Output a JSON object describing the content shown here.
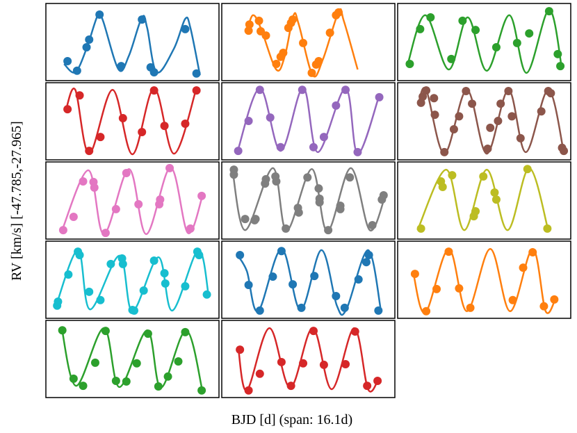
{
  "figure": {
    "xlabel": "BJD [d] (span: 16.1d)",
    "ylabel": "RV [km/s] [-47.785,-27.965]"
  },
  "chart_data": [
    {
      "type": "line",
      "xlim": [
        -2,
        18
      ],
      "ylim": [
        -50,
        -25
      ],
      "series": [
        {
          "style": "line",
          "color": "#1f77b4",
          "x": [
            0.1,
            1.4,
            2.7,
            4.0,
            4.6,
            6.4,
            7.6,
            9.1,
            9.7,
            10.8,
            12.8,
            14.1,
            14.7,
            15.8
          ],
          "values": [
            -44.6,
            -47.3,
            -39.6,
            -28.8,
            -30.6,
            -46.4,
            -41.9,
            -29.5,
            -32.9,
            -47.3,
            -39.6,
            -30.0,
            -32.9,
            -48.2
          ]
        },
        {
          "style": "scatter",
          "color": "#1f77b4",
          "x": [
            0.5,
            1.6,
            2.7,
            3.0,
            4.2,
            6.7,
            9.1,
            10.1,
            10.5,
            14.1,
            15.4
          ],
          "values": [
            -43.7,
            -46.8,
            -39.2,
            -36.7,
            -28.6,
            -45.3,
            -30.2,
            -45.7,
            -47.3,
            -33.3,
            -47.7
          ]
        }
      ]
    },
    {
      "type": "line",
      "xlim": [
        -2,
        18
      ],
      "ylim": [
        -50,
        -25
      ],
      "series": [
        {
          "style": "line",
          "color": "#ff7f0e",
          "x": [
            0.9,
            1.6,
            2.5,
            4.3,
            5.3,
            6.3,
            6.9,
            8.5,
            9.7,
            11.5,
            12.1,
            13.7
          ],
          "values": [
            -34.0,
            -28.8,
            -32.9,
            -46.4,
            -41.9,
            -28.8,
            -31.8,
            -48.2,
            -43.0,
            -27.7,
            -30.6,
            -46.4
          ]
        },
        {
          "style": "scatter",
          "color": "#ff7f0e",
          "x": [
            1.1,
            1.2,
            2.3,
            2.5,
            3.1,
            4.3,
            4.8,
            5.1,
            5.7,
            6.0,
            6.2,
            7.4,
            8.4,
            8.9,
            9.2,
            10.5,
            11.2,
            11.5
          ],
          "values": [
            -33.8,
            -31.8,
            -30.6,
            -34.0,
            -35.4,
            -44.6,
            -42.3,
            -41.0,
            -32.9,
            -31.3,
            -30.2,
            -37.8,
            -47.5,
            -44.8,
            -43.7,
            -34.5,
            -28.8,
            -27.9
          ]
        }
      ]
    },
    {
      "type": "line",
      "xlim": [
        -2,
        18
      ],
      "ylim": [
        -50,
        -25
      ],
      "series": [
        {
          "style": "line",
          "color": "#2ca02c",
          "x": [
            -0.9,
            1.2,
            3.9,
            6.1,
            8.3,
            10.9,
            12.9,
            15.5,
            17.0
          ],
          "values": [
            -45.3,
            -28.8,
            -46.4,
            -29.5,
            -46.8,
            -28.8,
            -47.5,
            -27.0,
            -46.4
          ]
        },
        {
          "style": "scatter",
          "color": "#2ca02c",
          "x": [
            -0.6,
            0.6,
            1.8,
            4.2,
            5.5,
            7.0,
            9.4,
            11.8,
            13.2,
            15.5,
            16.5,
            16.8
          ],
          "values": [
            -44.6,
            -33.3,
            -29.5,
            -43.0,
            -30.6,
            -33.6,
            -39.2,
            -37.8,
            -34.7,
            -27.5,
            -41.4,
            -45.3
          ]
        }
      ]
    },
    {
      "type": "line",
      "xlim": [
        -2,
        18
      ],
      "ylim": [
        -50,
        -25
      ],
      "series": [
        {
          "style": "line",
          "color": "#d62728",
          "x": [
            0.3,
            1.4,
            3.0,
            5.7,
            8.0,
            10.5,
            12.8,
            15.4
          ],
          "values": [
            -34.0,
            -27.3,
            -48.0,
            -27.3,
            -48.2,
            -26.8,
            -48.0,
            -26.8
          ]
        },
        {
          "style": "scatter",
          "color": "#d62728",
          "x": [
            0.5,
            1.9,
            3.0,
            4.3,
            6.9,
            9.1,
            10.5,
            11.7,
            14.1,
            15.4
          ],
          "values": [
            -33.6,
            -29.1,
            -47.1,
            -42.6,
            -36.5,
            -41.0,
            -27.5,
            -39.0,
            -38.3,
            -27.5
          ]
        }
      ]
    },
    {
      "type": "line",
      "xlim": [
        -2,
        18
      ],
      "ylim": [
        -50,
        -25
      ],
      "series": [
        {
          "style": "line",
          "color": "#9467bd",
          "x": [
            -0.2,
            2.4,
            4.8,
            7.4,
            9.1,
            12.3,
            13.7,
            16.2
          ],
          "values": [
            -47.5,
            -26.8,
            -47.1,
            -26.6,
            -47.5,
            -26.8,
            -48.0,
            -29.1
          ]
        },
        {
          "style": "scatter",
          "color": "#9467bd",
          "x": [
            -0.1,
            1.1,
            2.4,
            3.6,
            4.8,
            7.3,
            8.6,
            9.8,
            11.2,
            12.3,
            13.7,
            16.2
          ],
          "values": [
            -47.1,
            -37.4,
            -27.3,
            -36.3,
            -45.9,
            -27.3,
            -45.9,
            -42.6,
            -32.4,
            -27.3,
            -47.5,
            -29.7
          ]
        }
      ]
    },
    {
      "type": "line",
      "xlim": [
        -2,
        18
      ],
      "ylim": [
        -50,
        -25
      ],
      "series": [
        {
          "style": "line",
          "color": "#8c564b",
          "x": [
            0.4,
            1.3,
            3.4,
            6.0,
            8.3,
            10.8,
            12.8,
            15.4,
            17.2
          ],
          "values": [
            -31.8,
            -27.3,
            -48.0,
            -27.3,
            -48.0,
            -27.3,
            -47.5,
            -27.3,
            -47.5
          ]
        },
        {
          "style": "scatter",
          "color": "#8c564b",
          "x": [
            0.7,
            0.9,
            1.3,
            2.2,
            2.3,
            3.4,
            4.5,
            5.1,
            5.9,
            6.6,
            8.4,
            8.7,
            9.6,
            9.9,
            10.8,
            11.2,
            12.2,
            14.6,
            15.4,
            15.7,
            17.0,
            17.2
          ],
          "values": [
            -31.5,
            -29.5,
            -27.5,
            -30.0,
            -35.4,
            -47.5,
            -40.1,
            -35.9,
            -27.7,
            -31.8,
            -46.4,
            -39.6,
            -37.4,
            -31.8,
            -27.7,
            -35.9,
            -43.0,
            -34.3,
            -27.7,
            -28.4,
            -46.1,
            -47.1
          ]
        }
      ]
    },
    {
      "type": "line",
      "xlim": [
        -2,
        18
      ],
      "ylim": [
        -50,
        -25
      ],
      "series": [
        {
          "style": "line",
          "color": "#e377c2",
          "x": [
            -0.2,
            2.9,
            4.7,
            7.6,
            9.6,
            12.4,
            14.4,
            16.1
          ],
          "values": [
            -47.7,
            -27.7,
            -48.4,
            -27.3,
            -48.4,
            -26.8,
            -48.0,
            -36.0
          ]
        },
        {
          "style": "scatter",
          "color": "#e377c2",
          "x": [
            0.0,
            1.2,
            2.3,
            3.5,
            3.6,
            4.9,
            6.1,
            7.3,
            8.7,
            11.1,
            11.2,
            12.3,
            14.7,
            16.0
          ],
          "values": [
            -47.1,
            -42.8,
            -31.3,
            -31.5,
            -33.3,
            -48.0,
            -40.3,
            -28.6,
            -38.7,
            -38.7,
            -37.2,
            -27.0,
            -46.6,
            -36.0
          ]
        }
      ]
    },
    {
      "type": "line",
      "xlim": [
        -2,
        18
      ],
      "ylim": [
        -50,
        -25
      ],
      "series": [
        {
          "style": "line",
          "color": "#7f7f7f",
          "x": [
            -0.8,
            0.7,
            3.9,
            5.5,
            8.4,
            10.2,
            12.9,
            15.1,
            16.9
          ],
          "values": [
            -26.8,
            -47.1,
            -27.0,
            -47.3,
            -27.3,
            -47.5,
            -27.0,
            -47.1,
            -35.8
          ]
        },
        {
          "style": "scatter",
          "color": "#7f7f7f",
          "x": [
            -0.6,
            -0.6,
            0.7,
            1.8,
            1.9,
            3.0,
            3.1,
            4.2,
            4.3,
            5.4,
            6.8,
            6.9,
            7.9,
            9.2,
            9.3,
            9.3,
            10.3,
            11.7,
            11.7,
            12.8,
            15.4,
            16.5,
            16.7
          ],
          "values": [
            -27.5,
            -29.1,
            -43.5,
            -43.9,
            -43.5,
            -32.0,
            -30.6,
            -29.7,
            -31.3,
            -46.6,
            -39.9,
            -41.4,
            -30.0,
            -33.6,
            -36.9,
            -38.1,
            -47.1,
            -39.2,
            -40.3,
            -30.0,
            -45.5,
            -37.2,
            -35.8
          ]
        }
      ]
    },
    {
      "type": "line",
      "xlim": [
        -2,
        18
      ],
      "ylim": [
        -50,
        -25
      ],
      "series": [
        {
          "style": "line",
          "color": "#bcbd22",
          "x": [
            0.3,
            3.6,
            5.7,
            8.3,
            10.7,
            13.2,
            15.4
          ],
          "values": [
            -47.1,
            -27.5,
            -47.1,
            -27.5,
            -47.1,
            -27.0,
            -47.1
          ]
        },
        {
          "style": "scatter",
          "color": "#bcbd22",
          "x": [
            0.7,
            3.0,
            3.2,
            4.3,
            6.8,
            7.0,
            7.9,
            9.2,
            9.4,
            13.0,
            15.3
          ],
          "values": [
            -46.6,
            -31.3,
            -33.1,
            -29.3,
            -42.6,
            -41.0,
            -29.7,
            -34.9,
            -37.2,
            -27.3,
            -46.6
          ]
        }
      ]
    },
    {
      "type": "line",
      "xlim": [
        -2,
        18
      ],
      "ylim": [
        -50,
        -25
      ],
      "series": [
        {
          "style": "line",
          "color": "#17becf",
          "x": [
            -0.9,
            1.7,
            3.1,
            6.5,
            8.0,
            11.0,
            12.6,
            15.6,
            16.8
          ],
          "values": [
            -46.6,
            -27.9,
            -47.1,
            -29.7,
            -47.7,
            -30.2,
            -47.5,
            -27.9,
            -42.6
          ]
        },
        {
          "style": "scatter",
          "color": "#17becf",
          "x": [
            -0.7,
            -0.6,
            0.6,
            1.7,
            1.9,
            3.0,
            4.3,
            5.5,
            6.8,
            6.9,
            8.0,
            8.2,
            9.3,
            10.5,
            11.7,
            11.8,
            14.1,
            15.5,
            15.7,
            16.6
          ],
          "values": [
            -45.9,
            -44.6,
            -35.8,
            -28.4,
            -29.5,
            -41.4,
            -44.1,
            -32.4,
            -30.6,
            -32.4,
            -47.3,
            -47.5,
            -41.0,
            -31.3,
            -35.4,
            -38.7,
            -39.6,
            -28.4,
            -29.5,
            -42.3
          ]
        }
      ]
    },
    {
      "type": "line",
      "xlim": [
        -2,
        18
      ],
      "ylim": [
        -50,
        -25
      ],
      "series": [
        {
          "style": "line",
          "color": "#1f77b4",
          "x": [
            -0.2,
            0.9,
            2.2,
            4.9,
            7.1,
            9.5,
            11.3,
            12.4,
            14.9,
            16.4
          ],
          "values": [
            -29.5,
            -34.7,
            -47.7,
            -27.5,
            -47.3,
            -27.9,
            -45.9,
            -47.1,
            -27.9,
            -47.7
          ]
        },
        {
          "style": "scatter",
          "color": "#1f77b4",
          "x": [
            0.1,
            1.1,
            2.4,
            3.9,
            4.9,
            6.2,
            7.2,
            8.7,
            11.2,
            12.2,
            13.8,
            14.7,
            15.0,
            16.1
          ],
          "values": [
            -29.5,
            -39.2,
            -47.5,
            -36.5,
            -28.2,
            -39.0,
            -46.6,
            -36.3,
            -42.8,
            -46.6,
            -37.4,
            -31.8,
            -29.5,
            -47.5
          ]
        }
      ]
    },
    {
      "type": "line",
      "xlim": [
        -2,
        18
      ],
      "ylim": [
        -50,
        -25
      ],
      "series": [
        {
          "style": "line",
          "color": "#ff7f0e",
          "x": [
            -0.2,
            1.2,
            3.9,
            6.0,
            8.7,
            11.0,
            13.6,
            15.1,
            16.3
          ],
          "values": [
            -35.2,
            -48.2,
            -27.5,
            -47.7,
            -27.5,
            -47.7,
            -27.5,
            -47.7,
            -43.2
          ]
        },
        {
          "style": "scatter",
          "color": "#ff7f0e",
          "x": [
            0.0,
            1.3,
            2.5,
            3.9,
            5.1,
            6.4,
            11.3,
            12.5,
            13.6,
            14.9,
            16.1
          ],
          "values": [
            -35.6,
            -47.7,
            -40.5,
            -28.4,
            -40.3,
            -46.6,
            -44.1,
            -33.6,
            -28.6,
            -46.1,
            -43.9
          ]
        }
      ]
    },
    {
      "type": "line",
      "xlim": [
        -2,
        18
      ],
      "ylim": [
        -50,
        -25
      ],
      "series": [
        {
          "style": "line",
          "color": "#2ca02c",
          "x": [
            -0.2,
            1.5,
            4.7,
            6.5,
            9.7,
            11.3,
            14.2,
            16.1
          ],
          "values": [
            -27.0,
            -46.2,
            -27.5,
            -46.6,
            -28.2,
            -46.8,
            -28.2,
            -47.9
          ]
        },
        {
          "style": "scatter",
          "color": "#2ca02c",
          "x": [
            -0.1,
            1.2,
            2.3,
            3.7,
            4.9,
            6.1,
            7.3,
            8.5,
            9.8,
            11.0,
            12.1,
            13.3,
            14.1,
            16.0
          ],
          "values": [
            -28.2,
            -43.9,
            -46.2,
            -38.7,
            -28.4,
            -44.6,
            -44.8,
            -38.9,
            -29.3,
            -46.4,
            -43.2,
            -38.3,
            -28.8,
            -47.7
          ]
        }
      ]
    },
    {
      "type": "line",
      "xlim": [
        -2,
        18
      ],
      "ylim": [
        -50,
        -25
      ],
      "series": [
        {
          "style": "line",
          "color": "#d62728",
          "x": [
            -0.1,
            0.9,
            3.5,
            5.9,
            8.5,
            10.7,
            13.3,
            14.9,
            16.1
          ],
          "values": [
            -33.8,
            -47.7,
            -27.5,
            -46.8,
            -27.5,
            -47.3,
            -27.5,
            -47.3,
            -44.1
          ]
        },
        {
          "style": "scatter",
          "color": "#d62728",
          "x": [
            0.1,
            1.1,
            2.4,
            4.9,
            6.0,
            7.4,
            8.6,
            9.8,
            12.3,
            13.4,
            14.8,
            16.0
          ],
          "values": [
            -34.5,
            -47.7,
            -42.3,
            -38.5,
            -46.2,
            -38.9,
            -28.4,
            -39.4,
            -39.2,
            -28.6,
            -46.2,
            -44.6
          ]
        }
      ]
    }
  ]
}
